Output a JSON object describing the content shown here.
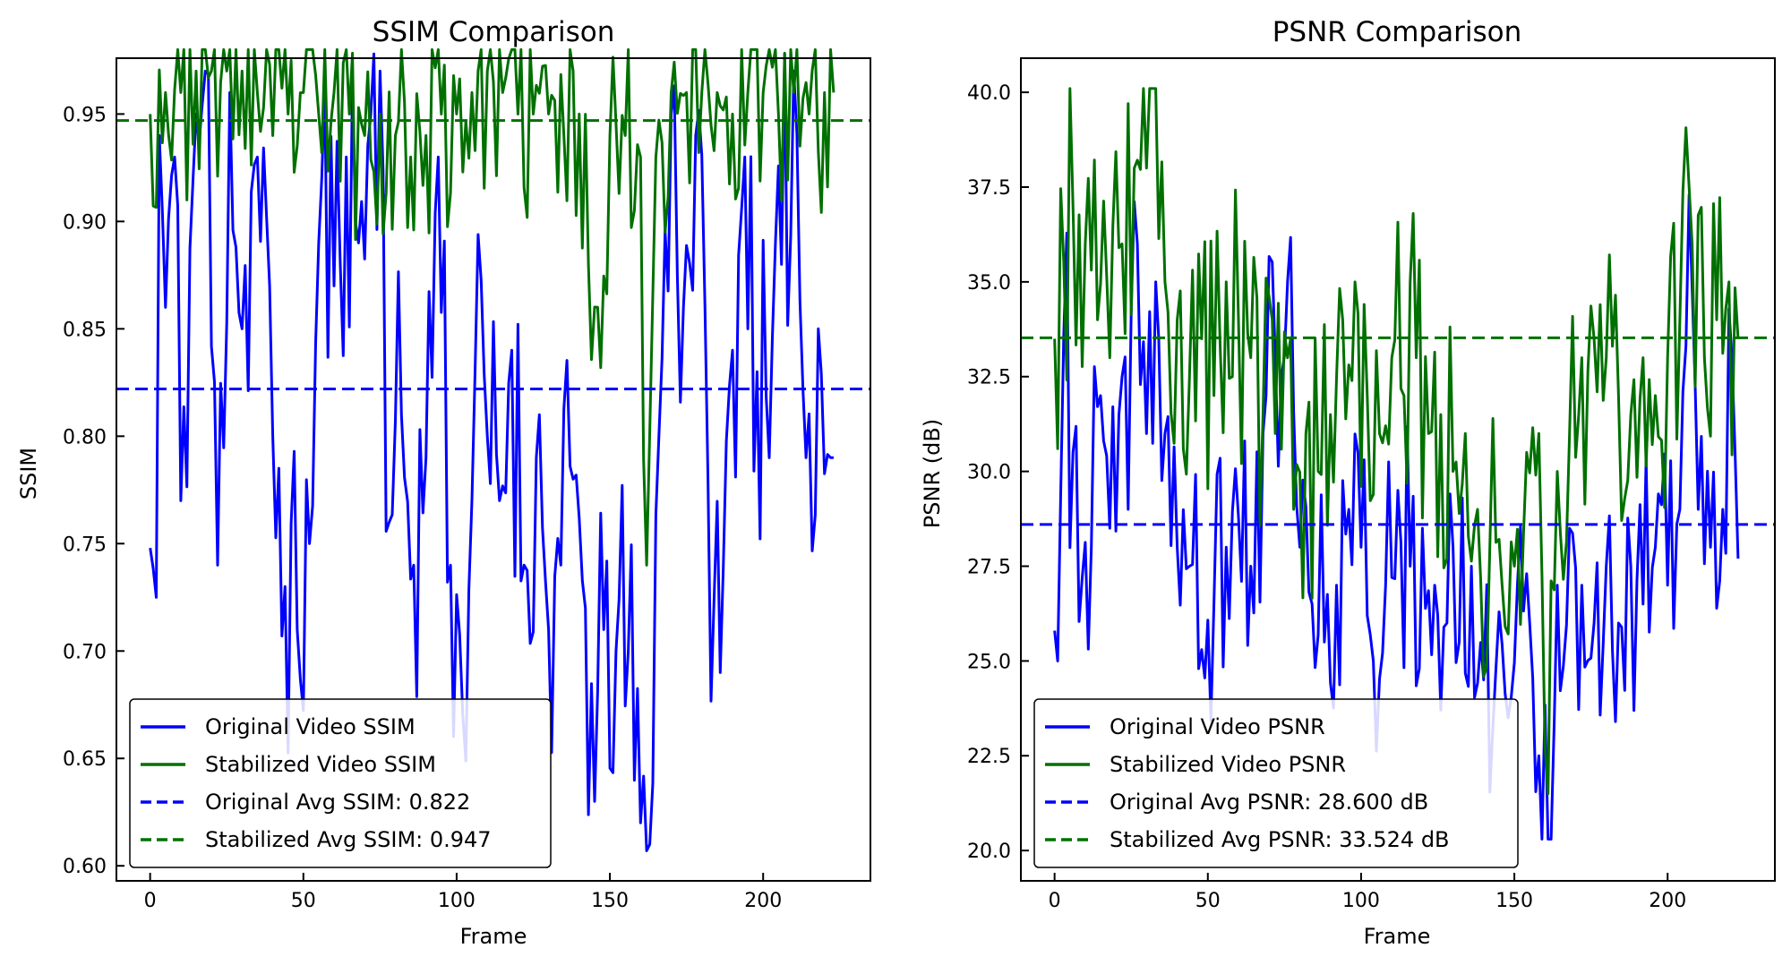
{
  "chart_data": [
    {
      "type": "line",
      "title": "SSIM Comparison",
      "xlabel": "Frame",
      "ylabel": "SSIM",
      "xlim": [
        -11,
        235
      ],
      "ylim": [
        0.593,
        0.976
      ],
      "xticks": [
        0,
        50,
        100,
        150,
        200
      ],
      "yticks": [
        0.6,
        0.65,
        0.7,
        0.75,
        0.8,
        0.85,
        0.9,
        0.95
      ],
      "ytick_decimals": 2,
      "grid": false,
      "legend_position": "lower-left",
      "series": [
        {
          "name": "Original Video SSIM",
          "color": "#0000ff",
          "style": "solid",
          "kind": "noisy",
          "count": 224,
          "seed": 11,
          "min": 0.607,
          "max": 0.978,
          "anchors": [
            [
              0,
              0.748
            ],
            [
              2,
              0.725
            ],
            [
              3,
              0.94
            ],
            [
              5,
              0.86
            ],
            [
              8,
              0.93
            ],
            [
              10,
              0.77
            ],
            [
              14,
              0.92
            ],
            [
              18,
              0.97
            ],
            [
              22,
              0.74
            ],
            [
              26,
              0.96
            ],
            [
              30,
              0.85
            ],
            [
              35,
              0.93
            ],
            [
              40,
              0.8
            ],
            [
              44,
              0.73
            ],
            [
              48,
              0.71
            ],
            [
              52,
              0.75
            ],
            [
              56,
              0.92
            ],
            [
              60,
              0.87
            ],
            [
              64,
              0.93
            ],
            [
              68,
              0.89
            ],
            [
              72,
              0.95
            ],
            [
              75,
              0.97
            ],
            [
              78,
              0.76
            ],
            [
              82,
              0.81
            ],
            [
              86,
              0.74
            ],
            [
              90,
              0.79
            ],
            [
              94,
              0.93
            ],
            [
              98,
              0.74
            ],
            [
              102,
              0.67
            ],
            [
              106,
              0.83
            ],
            [
              110,
              0.8
            ],
            [
              114,
              0.77
            ],
            [
              118,
              0.84
            ],
            [
              122,
              0.74
            ],
            [
              126,
              0.79
            ],
            [
              130,
              0.71
            ],
            [
              134,
              0.74
            ],
            [
              138,
              0.78
            ],
            [
              142,
              0.72
            ],
            [
              145,
              0.63
            ],
            [
              148,
              0.71
            ],
            [
              152,
              0.7
            ],
            [
              156,
              0.7
            ],
            [
              160,
              0.62
            ],
            [
              163,
              0.61
            ],
            [
              166,
              0.8
            ],
            [
              170,
              0.95
            ],
            [
              174,
              0.86
            ],
            [
              178,
              0.94
            ],
            [
              182,
              0.78
            ],
            [
              186,
              0.69
            ],
            [
              190,
              0.84
            ],
            [
              194,
              0.93
            ],
            [
              198,
              0.83
            ],
            [
              202,
              0.79
            ],
            [
              206,
              0.88
            ],
            [
              210,
              0.97
            ],
            [
              214,
              0.79
            ],
            [
              218,
              0.85
            ],
            [
              222,
              0.79
            ],
            [
              223,
              0.79
            ]
          ]
        },
        {
          "name": "Stabilized Video SSIM",
          "color": "#007000",
          "style": "solid",
          "kind": "noisy",
          "count": 224,
          "seed": 23,
          "min": 0.73,
          "max": 0.98,
          "anchors": [
            [
              0,
              0.95
            ],
            [
              5,
              0.96
            ],
            [
              10,
              0.96
            ],
            [
              15,
              0.97
            ],
            [
              20,
              0.97
            ],
            [
              25,
              0.97
            ],
            [
              30,
              0.97
            ],
            [
              35,
              0.96
            ],
            [
              40,
              0.94
            ],
            [
              45,
              0.95
            ],
            [
              50,
              0.96
            ],
            [
              55,
              0.95
            ],
            [
              60,
              0.96
            ],
            [
              65,
              0.95
            ],
            [
              70,
              0.94
            ],
            [
              75,
              0.95
            ],
            [
              80,
              0.94
            ],
            [
              85,
              0.93
            ],
            [
              90,
              0.94
            ],
            [
              95,
              0.95
            ],
            [
              100,
              0.95
            ],
            [
              105,
              0.96
            ],
            [
              110,
              0.97
            ],
            [
              115,
              0.96
            ],
            [
              120,
              0.95
            ],
            [
              125,
              0.95
            ],
            [
              130,
              0.95
            ],
            [
              135,
              0.94
            ],
            [
              140,
              0.95
            ],
            [
              143,
              0.88
            ],
            [
              146,
              0.86
            ],
            [
              150,
              0.94
            ],
            [
              155,
              0.94
            ],
            [
              160,
              0.93
            ],
            [
              162,
              0.74
            ],
            [
              165,
              0.93
            ],
            [
              170,
              0.96
            ],
            [
              175,
              0.96
            ],
            [
              180,
              0.96
            ],
            [
              185,
              0.96
            ],
            [
              190,
              0.95
            ],
            [
              195,
              0.96
            ],
            [
              200,
              0.96
            ],
            [
              205,
              0.95
            ],
            [
              210,
              0.96
            ],
            [
              215,
              0.95
            ],
            [
              220,
              0.96
            ],
            [
              223,
              0.96
            ]
          ]
        },
        {
          "name": "Original Avg SSIM: 0.822",
          "color": "#0000ff",
          "style": "dashed",
          "kind": "hline",
          "value": 0.822
        },
        {
          "name": "Stabilized Avg SSIM: 0.947",
          "color": "#007000",
          "style": "dashed",
          "kind": "hline",
          "value": 0.947
        }
      ]
    },
    {
      "type": "line",
      "title": "PSNR Comparison",
      "xlabel": "Frame",
      "ylabel": "PSNR (dB)",
      "xlim": [
        -11,
        235
      ],
      "ylim": [
        19.2,
        40.9
      ],
      "xticks": [
        0,
        50,
        100,
        150,
        200
      ],
      "yticks": [
        20.0,
        22.5,
        25.0,
        27.5,
        30.0,
        32.5,
        35.0,
        37.5,
        40.0
      ],
      "ytick_decimals": 1,
      "grid": false,
      "legend_position": "lower-left",
      "series": [
        {
          "name": "Original Video PSNR",
          "color": "#0000ff",
          "style": "solid",
          "kind": "noisy",
          "count": 224,
          "seed": 37,
          "min": 20.3,
          "max": 37.3,
          "anchors": [
            [
              0,
              25.8
            ],
            [
              1,
              25.0
            ],
            [
              3,
              33.6
            ],
            [
              6,
              30.5
            ],
            [
              9,
              27.2
            ],
            [
              12,
              28.0
            ],
            [
              15,
              32.0
            ],
            [
              18,
              28.5
            ],
            [
              21,
              31.5
            ],
            [
              24,
              29.0
            ],
            [
              27,
              36.0
            ],
            [
              30,
              31.0
            ],
            [
              33,
              35.0
            ],
            [
              36,
              31.0
            ],
            [
              40,
              28.0
            ],
            [
              44,
              27.5
            ],
            [
              48,
              25.3
            ],
            [
              52,
              26.5
            ],
            [
              56,
              28.0
            ],
            [
              60,
              28.8
            ],
            [
              64,
              27.5
            ],
            [
              68,
              31.0
            ],
            [
              72,
              33.0
            ],
            [
              76,
              35.0
            ],
            [
              80,
              28.0
            ],
            [
              84,
              26.5
            ],
            [
              88,
              25.5
            ],
            [
              92,
              27.0
            ],
            [
              96,
              29.0
            ],
            [
              100,
              28.0
            ],
            [
              104,
              25.0
            ],
            [
              108,
              27.0
            ],
            [
              112,
              29.5
            ],
            [
              116,
              27.5
            ],
            [
              120,
              28.5
            ],
            [
              124,
              27.0
            ],
            [
              128,
              26.0
            ],
            [
              132,
              25.5
            ],
            [
              136,
              27.5
            ],
            [
              140,
              24.5
            ],
            [
              144,
              24.8
            ],
            [
              148,
              23.5
            ],
            [
              151,
              27.0
            ],
            [
              155,
              26.0
            ],
            [
              158,
              22.5
            ],
            [
              161,
              20.3
            ],
            [
              164,
              27.0
            ],
            [
              168,
              28.5
            ],
            [
              172,
              27.0
            ],
            [
              176,
              26.0
            ],
            [
              180,
              27.5
            ],
            [
              184,
              26.0
            ],
            [
              188,
              27.5
            ],
            [
              192,
              26.5
            ],
            [
              196,
              28.0
            ],
            [
              200,
              27.0
            ],
            [
              204,
              29.0
            ],
            [
              207,
              37.3
            ],
            [
              210,
              29.0
            ],
            [
              214,
              28.0
            ],
            [
              218,
              29.0
            ],
            [
              221,
              33.0
            ],
            [
              223,
              27.7
            ]
          ]
        },
        {
          "name": "Stabilized Video PSNR",
          "color": "#007000",
          "style": "solid",
          "kind": "noisy",
          "count": 224,
          "seed": 53,
          "min": 21.5,
          "max": 40.1,
          "anchors": [
            [
              0,
              33.5
            ],
            [
              3,
              35.5
            ],
            [
              6,
              37.0
            ],
            [
              10,
              36.0
            ],
            [
              14,
              34.0
            ],
            [
              18,
              33.0
            ],
            [
              22,
              36.0
            ],
            [
              26,
              38.0
            ],
            [
              30,
              38.0
            ],
            [
              33,
              40.1
            ],
            [
              36,
              35.0
            ],
            [
              40,
              34.0
            ],
            [
              44,
              32.5
            ],
            [
              48,
              33.5
            ],
            [
              52,
              32.0
            ],
            [
              56,
              35.0
            ],
            [
              60,
              34.0
            ],
            [
              64,
              33.0
            ],
            [
              68,
              31.5
            ],
            [
              72,
              31.0
            ],
            [
              76,
              33.0
            ],
            [
              78,
              29.0
            ],
            [
              82,
              31.0
            ],
            [
              86,
              30.0
            ],
            [
              90,
              31.5
            ],
            [
              94,
              34.0
            ],
            [
              98,
              35.0
            ],
            [
              102,
              32.0
            ],
            [
              106,
              31.0
            ],
            [
              110,
              33.0
            ],
            [
              114,
              32.0
            ],
            [
              118,
              33.0
            ],
            [
              122,
              31.0
            ],
            [
              126,
              31.5
            ],
            [
              130,
              30.0
            ],
            [
              134,
              31.0
            ],
            [
              138,
              29.0
            ],
            [
              142,
              28.0
            ],
            [
              146,
              27.0
            ],
            [
              150,
              27.5
            ],
            [
              154,
              30.5
            ],
            [
              158,
              31.0
            ],
            [
              161,
              21.5
            ],
            [
              164,
              30.0
            ],
            [
              168,
              31.0
            ],
            [
              172,
              33.0
            ],
            [
              176,
              33.5
            ],
            [
              180,
              33.0
            ],
            [
              184,
              32.0
            ],
            [
              188,
              31.5
            ],
            [
              192,
              33.0
            ],
            [
              196,
              32.0
            ],
            [
              200,
              33.0
            ],
            [
              204,
              34.0
            ],
            [
              208,
              36.0
            ],
            [
              212,
              33.0
            ],
            [
              216,
              34.0
            ],
            [
              220,
              35.0
            ],
            [
              223,
              33.5
            ]
          ]
        },
        {
          "name": "Original Avg PSNR: 28.600 dB",
          "color": "#0000ff",
          "style": "dashed",
          "kind": "hline",
          "value": 28.6
        },
        {
          "name": "Stabilized Avg PSNR: 33.524 dB",
          "color": "#007000",
          "style": "dashed",
          "kind": "hline",
          "value": 33.524
        }
      ]
    }
  ]
}
